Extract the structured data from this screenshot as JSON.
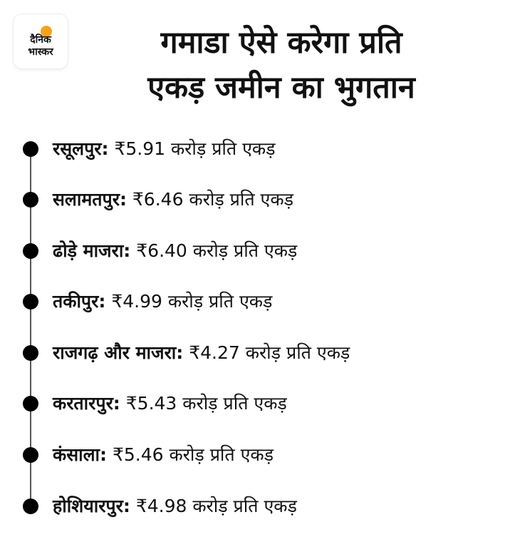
{
  "logo": {
    "line1": "दैनिक",
    "line2": "भास्कर",
    "accent_color": "#f7a21b"
  },
  "title": {
    "line1": "गमाडा ऐसे करेगा प्रति",
    "line2": "एकड़ जमीन का भुगतान"
  },
  "items": [
    {
      "place": "रसूलपुर:",
      "value": "₹5.91 करोड़ प्रति एकड़"
    },
    {
      "place": "सलामतपुर:",
      "value": "₹6.46 करोड़ प्रति एकड़"
    },
    {
      "place": "ढोड़े माजरा:",
      "value": "₹6.40 करोड़ प्रति एकड़"
    },
    {
      "place": "तकीपुर:",
      "value": "₹4.99 करोड़ प्रति एकड़"
    },
    {
      "place": "राजगढ़ और माजरा:",
      "value": "₹4.27 करोड़ प्रति एकड़"
    },
    {
      "place": "करतारपुर:",
      "value": "₹5.43 करोड़ प्रति एकड़"
    },
    {
      "place": "कंसाला:",
      "value": "₹5.46 करोड़ प्रति एकड़"
    },
    {
      "place": "होशियारपुर:",
      "value": "₹4.98 करोड़ प्रति एकड़"
    }
  ]
}
